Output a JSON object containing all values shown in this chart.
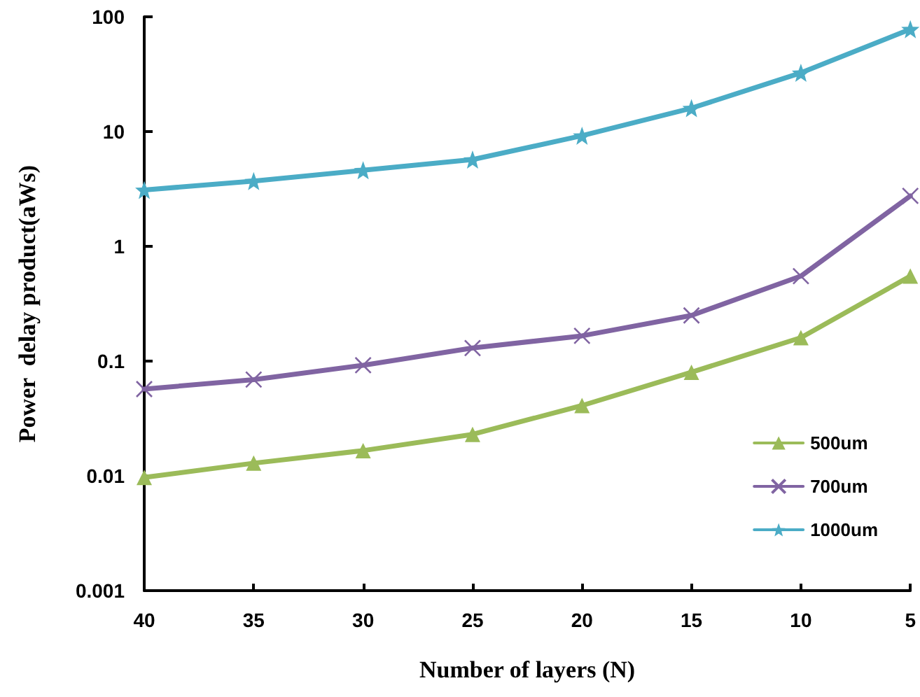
{
  "chart_data": {
    "type": "line",
    "xlabel": "Number of layers (N)",
    "ylabel": "Power  delay product(aWs)",
    "categories": [
      "40",
      "35",
      "30",
      "25",
      "20",
      "15",
      "10",
      "5"
    ],
    "log": "y",
    "ylim": [
      0.001,
      100
    ],
    "yticks": [
      0.001,
      0.01,
      0.1,
      1,
      10,
      100
    ],
    "grid": false,
    "legend": "right",
    "series": [
      {
        "name": "500um",
        "color": "#9bbb59",
        "marker": "triangle",
        "values": [
          0.0097,
          0.0129,
          0.0166,
          0.023,
          0.041,
          0.08,
          0.16,
          0.55
        ]
      },
      {
        "name": "700um",
        "color": "#8064a2",
        "marker": "cross",
        "values": [
          0.057,
          0.069,
          0.092,
          0.13,
          0.166,
          0.25,
          0.55,
          2.75
        ]
      },
      {
        "name": "1000um",
        "color": "#4bacc6",
        "marker": "star",
        "values": [
          3.1,
          3.7,
          4.6,
          5.7,
          9.2,
          16,
          32.5,
          78
        ]
      }
    ]
  }
}
